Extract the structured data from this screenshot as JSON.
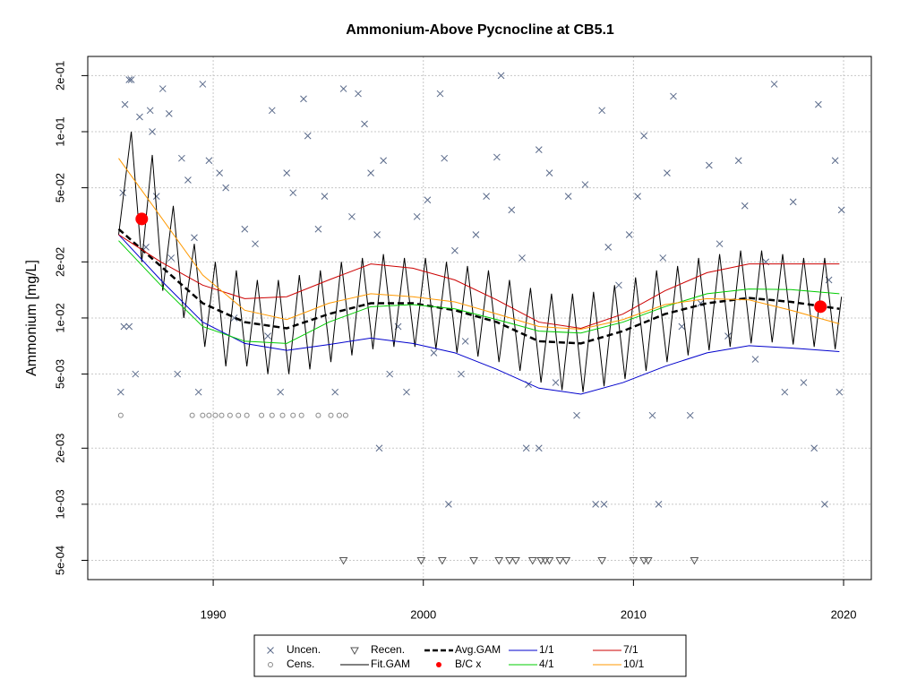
{
  "chart_data": {
    "type": "line",
    "title": "Ammonium-Above Pycnocline at CB5.1",
    "ylabel": "Ammonium [mg/L]",
    "log_y": true,
    "grid": true,
    "legend": "bottom",
    "xlim": [
      1984.03,
      2021.32
    ],
    "ylim": [
      0.000394,
      0.2535
    ],
    "xticks": [
      1990,
      2000,
      2010,
      2020
    ],
    "yticks": [
      {
        "value": 0.2,
        "label": "2e-01"
      },
      {
        "value": 0.1,
        "label": "1e-01"
      },
      {
        "value": 0.05,
        "label": "5e-02"
      },
      {
        "value": 0.02,
        "label": "2e-02"
      },
      {
        "value": 0.01,
        "label": "1e-02"
      },
      {
        "value": 0.005,
        "label": "5e-03"
      },
      {
        "value": 0.002,
        "label": "2e-03"
      },
      {
        "value": 0.001,
        "label": "1e-03"
      },
      {
        "value": 0.0005,
        "label": "5e-04"
      }
    ],
    "series": [
      {
        "name": "Uncen.",
        "color": "#5a6a8a",
        "marker": "x",
        "x": [
          1985.6,
          1985.7,
          1985.8,
          1986.0,
          1986.1,
          1985.75,
          1986.0,
          1986.3,
          1986.5,
          1986.8,
          1987.0,
          1987.1,
          1987.3,
          1987.6,
          1987.9,
          1988.0,
          1988.3,
          1988.5,
          1988.8,
          1989.1,
          1989.3,
          1989.5,
          1989.8,
          1990.3,
          1990.6,
          1991.0,
          1991.5,
          1992.0,
          1992.6,
          1992.8,
          1993.2,
          1993.5,
          1993.8,
          1994.3,
          1994.5,
          1995.0,
          1995.3,
          1995.8,
          1996.2,
          1996.6,
          1996.9,
          1997.2,
          1997.5,
          1997.8,
          1998.1,
          1998.4,
          1998.8,
          1999.2,
          1999.7,
          2000.2,
          2000.5,
          2000.8,
          2001.0,
          2001.5,
          2001.8,
          2002.0,
          2002.5,
          2003.0,
          2003.5,
          2003.7,
          2004.2,
          2004.7,
          2005.0,
          2005.5,
          2006.0,
          2006.3,
          2006.9,
          2007.3,
          2007.7,
          2008.2,
          2008.5,
          2008.8,
          2009.3,
          2009.8,
          2010.2,
          2010.5,
          2010.9,
          2011.4,
          2011.6,
          2011.9,
          2012.3,
          2012.7,
          2013.2,
          2013.6,
          2014.1,
          2014.5,
          2015.0,
          2015.3,
          2015.8,
          2016.3,
          2016.7,
          2017.2,
          2017.6,
          2018.1,
          2018.6,
          2018.8,
          2019.1,
          2019.3,
          2019.6,
          2019.8,
          2019.9,
          1997.9,
          2004.9,
          2005.5,
          2001.2,
          2008.6,
          2011.2
        ],
        "values": [
          0.004,
          0.047,
          0.14,
          0.19,
          0.19,
          0.009,
          0.009,
          0.005,
          0.12,
          0.024,
          0.13,
          0.1,
          0.045,
          0.17,
          0.125,
          0.021,
          0.005,
          0.072,
          0.055,
          0.027,
          0.004,
          0.18,
          0.07,
          0.06,
          0.05,
          0.01,
          0.03,
          0.025,
          0.008,
          0.13,
          0.004,
          0.06,
          0.047,
          0.15,
          0.095,
          0.03,
          0.045,
          0.004,
          0.17,
          0.035,
          0.16,
          0.11,
          0.06,
          0.028,
          0.07,
          0.005,
          0.009,
          0.004,
          0.035,
          0.043,
          0.0065,
          0.16,
          0.072,
          0.023,
          0.005,
          0.0075,
          0.028,
          0.045,
          0.073,
          0.2,
          0.038,
          0.021,
          0.0044,
          0.08,
          0.06,
          0.0045,
          0.045,
          0.003,
          0.052,
          0.001,
          0.13,
          0.024,
          0.015,
          0.028,
          0.045,
          0.095,
          0.003,
          0.021,
          0.06,
          0.155,
          0.009,
          0.003,
          0.012,
          0.066,
          0.025,
          0.008,
          0.07,
          0.04,
          0.006,
          0.02,
          0.18,
          0.004,
          0.042,
          0.0045,
          0.002,
          0.14,
          0.001,
          0.016,
          0.07,
          0.004,
          0.038,
          0.002,
          0.002,
          0.002,
          0.001,
          0.001,
          0.001
        ]
      },
      {
        "name": "Cens.",
        "color": "#888888",
        "marker": "o",
        "x": [
          1985.6,
          1989.0,
          1989.5,
          1989.8,
          1990.1,
          1990.4,
          1990.8,
          1991.2,
          1991.6,
          1992.3,
          1992.8,
          1993.3,
          1993.8,
          1994.2,
          1995.0,
          1995.6,
          1996.0,
          1996.3
        ],
        "values": [
          0.003,
          0.003,
          0.003,
          0.003,
          0.003,
          0.003,
          0.003,
          0.003,
          0.003,
          0.003,
          0.003,
          0.003,
          0.003,
          0.003,
          0.003,
          0.003,
          0.003,
          0.003
        ]
      },
      {
        "name": "Recen.",
        "color": "#555555",
        "marker": "triangle",
        "x": [
          1996.2,
          1999.9,
          2000.9,
          2002.4,
          2003.6,
          2004.1,
          2004.4,
          2005.2,
          2005.6,
          2005.8,
          2006.0,
          2006.5,
          2006.8,
          2008.5,
          2010.0,
          2010.5,
          2010.7,
          2012.9
        ],
        "values": [
          0.0005,
          0.0005,
          0.0005,
          0.0005,
          0.0005,
          0.0005,
          0.0005,
          0.0005,
          0.0005,
          0.0005,
          0.0005,
          0.0005,
          0.0005,
          0.0005,
          0.0005,
          0.0005,
          0.0005,
          0.0005
        ]
      },
      {
        "name": "Fit.GAM",
        "color": "#000000",
        "line": "solid",
        "width": 1,
        "x": [
          1985.5,
          1986.1,
          1986.6,
          1987.1,
          1987.6,
          1988.1,
          1988.6,
          1989.1,
          1989.6,
          1990.1,
          1990.6,
          1991.1,
          1991.6,
          1992.1,
          1992.6,
          1993.1,
          1993.6,
          1994.1,
          1994.6,
          1995.1,
          1995.6,
          1996.1,
          1996.6,
          1997.1,
          1997.6,
          1998.1,
          1998.6,
          1999.1,
          1999.6,
          2000.1,
          2000.6,
          2001.1,
          2001.6,
          2002.1,
          2002.6,
          2003.1,
          2003.6,
          2004.1,
          2004.6,
          2005.1,
          2005.6,
          2006.1,
          2006.6,
          2007.1,
          2007.6,
          2008.1,
          2008.6,
          2009.1,
          2009.6,
          2010.1,
          2010.6,
          2011.1,
          2011.6,
          2012.1,
          2012.6,
          2013.1,
          2013.6,
          2014.1,
          2014.6,
          2015.1,
          2015.6,
          2016.1,
          2016.6,
          2017.1,
          2017.6,
          2018.1,
          2018.6,
          2019.1,
          2019.6,
          2019.9
        ],
        "values": [
          0.028,
          0.1,
          0.02,
          0.075,
          0.014,
          0.04,
          0.01,
          0.025,
          0.007,
          0.02,
          0.0055,
          0.018,
          0.0055,
          0.016,
          0.005,
          0.016,
          0.005,
          0.017,
          0.0053,
          0.018,
          0.0058,
          0.02,
          0.0063,
          0.021,
          0.0068,
          0.022,
          0.007,
          0.021,
          0.007,
          0.021,
          0.0068,
          0.02,
          0.0065,
          0.019,
          0.0062,
          0.018,
          0.0058,
          0.016,
          0.0052,
          0.0145,
          0.0045,
          0.0135,
          0.0041,
          0.0135,
          0.004,
          0.0138,
          0.0043,
          0.015,
          0.0047,
          0.0165,
          0.0052,
          0.018,
          0.0058,
          0.019,
          0.0063,
          0.021,
          0.0067,
          0.022,
          0.007,
          0.023,
          0.0073,
          0.023,
          0.0074,
          0.022,
          0.0072,
          0.021,
          0.007,
          0.021,
          0.0068,
          0.013
        ]
      },
      {
        "name": "Avg.GAM",
        "color": "#000000",
        "line": "dashed",
        "width": 2.5,
        "x": [
          1985.5,
          1987.5,
          1989.5,
          1991.5,
          1993.5,
          1995.5,
          1997.5,
          1999.5,
          2001.5,
          2003.5,
          2005.5,
          2007.5,
          2009.5,
          2011.5,
          2013.5,
          2015.5,
          2017.5,
          2019.8
        ],
        "values": [
          0.03,
          0.019,
          0.012,
          0.0095,
          0.0088,
          0.0105,
          0.012,
          0.012,
          0.011,
          0.0095,
          0.0075,
          0.0073,
          0.0085,
          0.0105,
          0.012,
          0.0128,
          0.0122,
          0.0112
        ]
      },
      {
        "name": "B/C x",
        "color": "#ff0000",
        "marker": "dot",
        "x": [
          1986.6,
          2018.9
        ],
        "values": [
          0.034,
          0.0115
        ]
      },
      {
        "name": "1/1",
        "color": "#0000cc",
        "line": "solid",
        "width": 1,
        "x": [
          1985.5,
          1987.5,
          1989.5,
          1991.5,
          1993.5,
          1995.5,
          1997.5,
          1999.5,
          2001.5,
          2003.5,
          2005.5,
          2007.5,
          2009.5,
          2011.5,
          2013.5,
          2015.5,
          2017.5,
          2019.8
        ],
        "values": [
          0.028,
          0.016,
          0.0095,
          0.0073,
          0.0067,
          0.0072,
          0.0078,
          0.0073,
          0.0065,
          0.0053,
          0.0042,
          0.0039,
          0.0045,
          0.0055,
          0.0065,
          0.0071,
          0.0069,
          0.0066
        ]
      },
      {
        "name": "4/1",
        "color": "#00cc00",
        "line": "solid",
        "width": 1,
        "x": [
          1985.5,
          1987.5,
          1989.5,
          1991.5,
          1993.5,
          1995.5,
          1997.5,
          1999.5,
          2001.5,
          2003.5,
          2005.5,
          2007.5,
          2009.5,
          2011.5,
          2013.5,
          2015.5,
          2017.5,
          2019.8
        ],
        "values": [
          0.026,
          0.015,
          0.009,
          0.0075,
          0.0073,
          0.0095,
          0.0115,
          0.0118,
          0.0112,
          0.0098,
          0.0085,
          0.0083,
          0.0095,
          0.0115,
          0.0135,
          0.0143,
          0.0142,
          0.0135
        ]
      },
      {
        "name": "7/1",
        "color": "#cc0000",
        "line": "solid",
        "width": 1,
        "x": [
          1985.5,
          1987.5,
          1989.5,
          1991.5,
          1993.5,
          1995.5,
          1997.5,
          1999.5,
          2001.5,
          2003.5,
          2005.5,
          2007.5,
          2009.5,
          2011.5,
          2013.5,
          2015.5,
          2017.5,
          2019.8
        ],
        "values": [
          0.028,
          0.02,
          0.015,
          0.0127,
          0.013,
          0.016,
          0.0195,
          0.0185,
          0.016,
          0.0125,
          0.0095,
          0.0088,
          0.0105,
          0.014,
          0.0175,
          0.0195,
          0.0195,
          0.0195
        ]
      },
      {
        "name": "10/1",
        "color": "#ff9900",
        "line": "solid",
        "width": 1,
        "x": [
          1985.5,
          1987.5,
          1989.5,
          1991.5,
          1993.5,
          1995.5,
          1997.5,
          1999.5,
          2001.5,
          2003.5,
          2005.5,
          2007.5,
          2009.5,
          2011.5,
          2013.5,
          2015.5,
          2017.5,
          2019.8
        ],
        "values": [
          0.072,
          0.035,
          0.017,
          0.011,
          0.0098,
          0.012,
          0.0135,
          0.013,
          0.0122,
          0.0105,
          0.009,
          0.0087,
          0.0098,
          0.0118,
          0.0127,
          0.0125,
          0.011,
          0.0093
        ]
      }
    ]
  }
}
